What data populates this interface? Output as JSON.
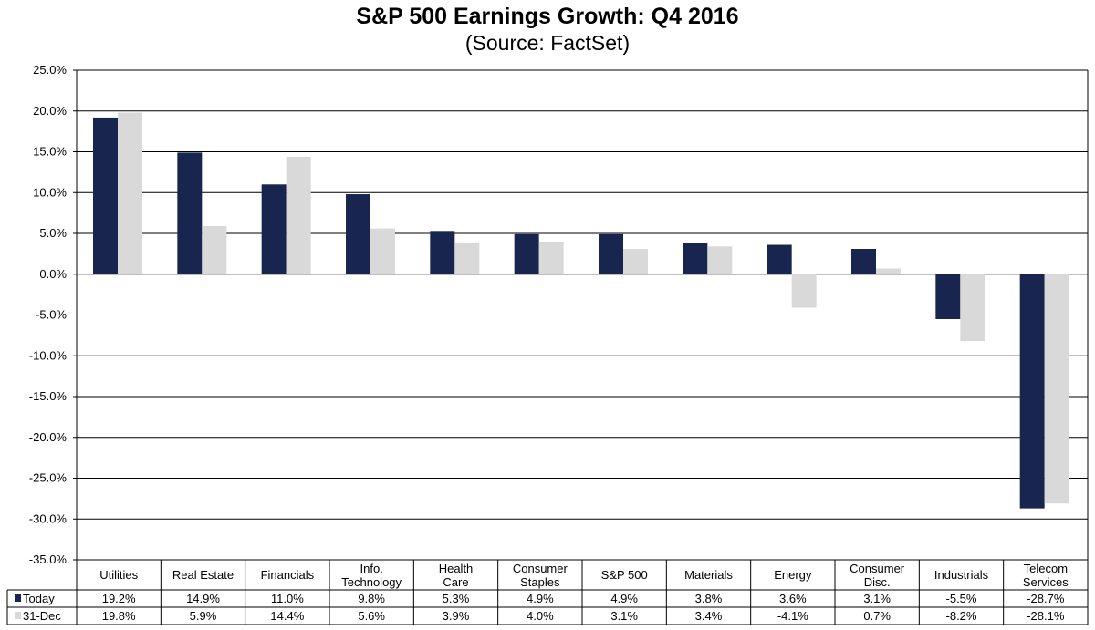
{
  "chart_data": {
    "type": "bar",
    "title": "S&P 500 Earnings Growth: Q4 2016",
    "subtitle": "(Source: FactSet)",
    "categories": [
      [
        "Utilities"
      ],
      [
        "Real Estate"
      ],
      [
        "Financials"
      ],
      [
        "Info.",
        "Technology"
      ],
      [
        "Health",
        "Care"
      ],
      [
        "Consumer",
        "Staples"
      ],
      [
        "S&P 500"
      ],
      [
        "Materials"
      ],
      [
        "Energy"
      ],
      [
        "Consumer",
        "Disc."
      ],
      [
        "Industrials"
      ],
      [
        "Telecom",
        "Services"
      ]
    ],
    "series": [
      {
        "name": "Today",
        "color": "#17254F",
        "values": [
          19.2,
          14.9,
          11.0,
          9.8,
          5.3,
          4.9,
          4.9,
          3.8,
          3.6,
          3.1,
          -5.5,
          -28.7
        ],
        "labels": [
          "19.2%",
          "14.9%",
          "11.0%",
          "9.8%",
          "5.3%",
          "4.9%",
          "4.9%",
          "3.8%",
          "3.6%",
          "3.1%",
          "-5.5%",
          "-28.7%"
        ]
      },
      {
        "name": "31-Dec",
        "color": "#D9D9D9",
        "values": [
          19.8,
          5.9,
          14.4,
          5.6,
          3.9,
          4.0,
          3.1,
          3.4,
          -4.1,
          0.7,
          -8.2,
          -28.1
        ],
        "labels": [
          "19.8%",
          "5.9%",
          "14.4%",
          "5.6%",
          "3.9%",
          "4.0%",
          "3.1%",
          "3.4%",
          "-4.1%",
          "0.7%",
          "-8.2%",
          "-28.1%"
        ]
      }
    ],
    "ylim": [
      -35,
      25
    ],
    "ytick_values": [
      25,
      20,
      15,
      10,
      5,
      0,
      -5,
      -10,
      -15,
      -20,
      -25,
      -30,
      -35
    ],
    "ytick_labels": [
      "25.0%",
      "20.0%",
      "15.0%",
      "10.0%",
      "5.0%",
      "0.0%",
      "-5.0%",
      "-10.0%",
      "-15.0%",
      "-20.0%",
      "-25.0%",
      "-30.0%",
      "-35.0%"
    ],
    "gridlines": true,
    "legend": "data-table"
  }
}
